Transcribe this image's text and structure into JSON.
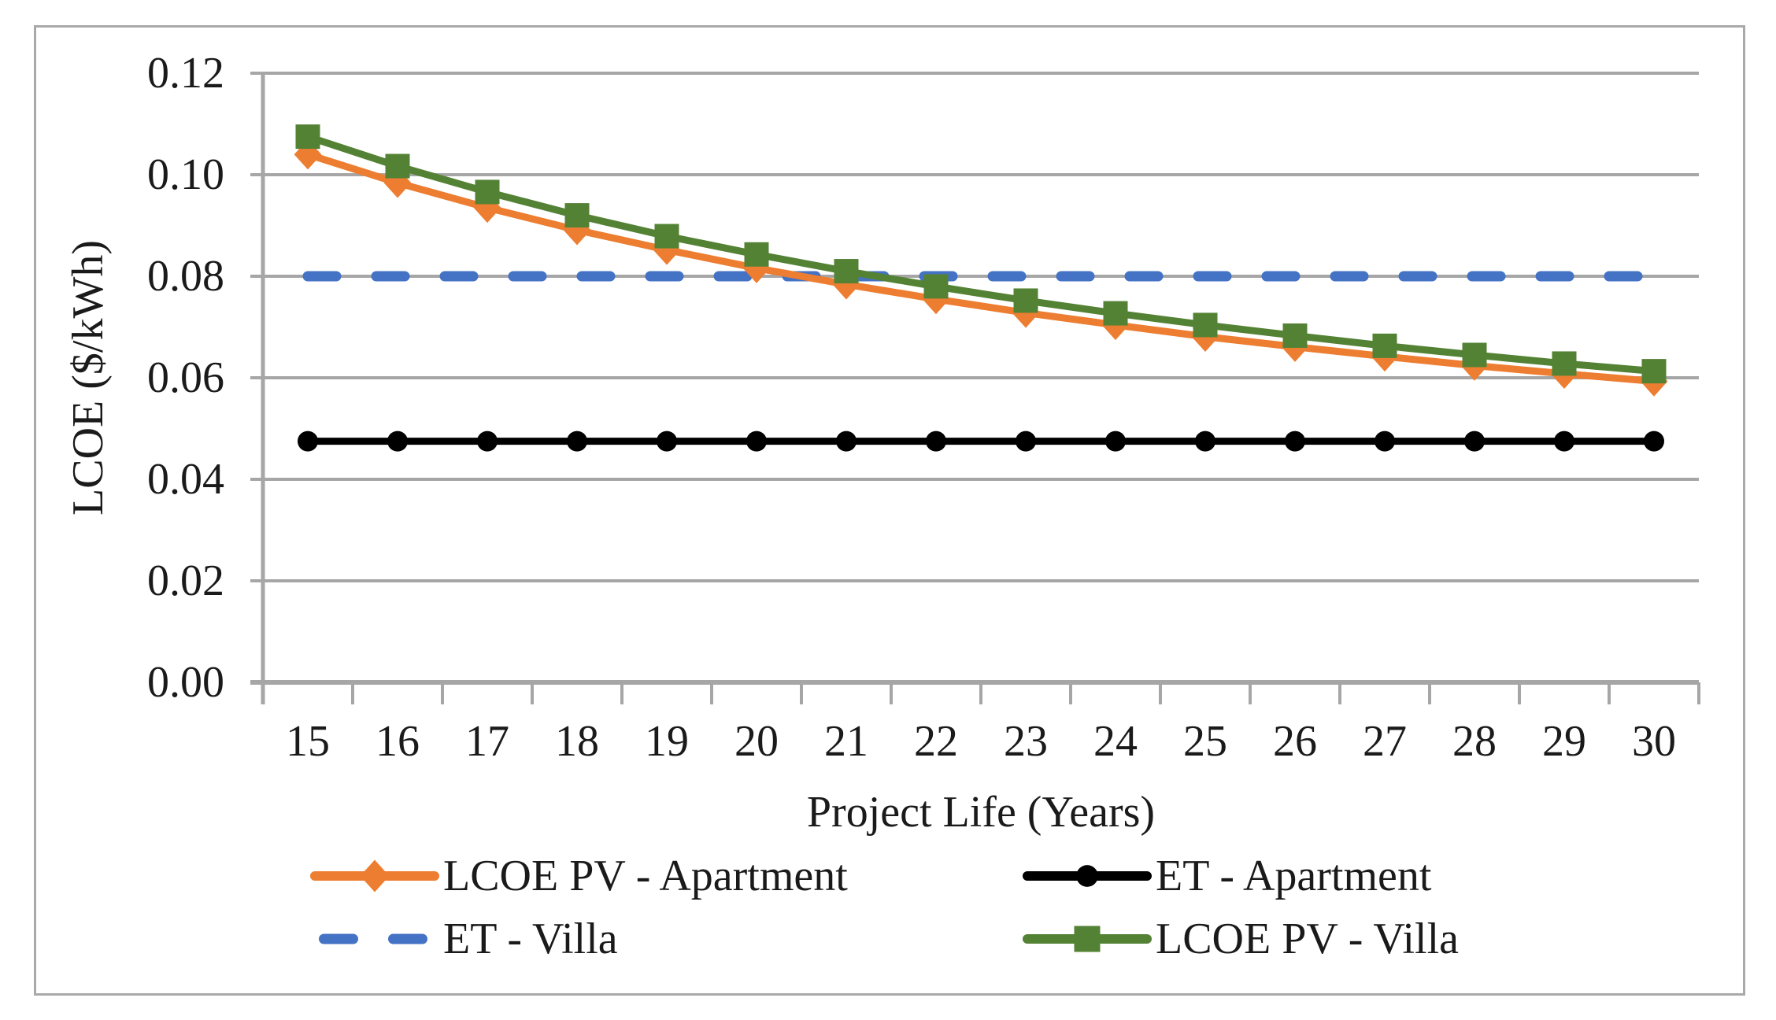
{
  "figure": {
    "background": "#ffffff",
    "border_color": "#a9a9a9",
    "gridline_color": "#a6a6a6",
    "axis_color": "#a6a6a6",
    "text_color": "#1a1a1a"
  },
  "chart_data": {
    "type": "line",
    "title": "",
    "xlabel": "Project Life (Years)",
    "ylabel": "LCOE ($/kWh)",
    "x_categories": [
      "15",
      "16",
      "17",
      "18",
      "19",
      "20",
      "21",
      "22",
      "23",
      "24",
      "25",
      "26",
      "27",
      "28",
      "29",
      "30"
    ],
    "ylim": [
      0,
      0.12
    ],
    "ytick_step": 0.02,
    "ytick_labels": [
      "0.00",
      "0.02",
      "0.04",
      "0.06",
      "0.08",
      "0.10",
      "0.12"
    ],
    "grid": "horizontal-only",
    "legend_position": "bottom, 2 columns x 2 rows",
    "series": [
      {
        "key": "et_villa",
        "name": "ET - Villa",
        "color": "#4472C4",
        "style": "dashed",
        "marker": "none",
        "values": [
          0.08,
          0.08,
          0.08,
          0.08,
          0.08,
          0.08,
          0.08,
          0.08,
          0.08,
          0.08,
          0.08,
          0.08,
          0.08,
          0.08,
          0.08,
          0.08
        ]
      },
      {
        "key": "et_apartment",
        "name": "ET - Apartment",
        "color": "#000000",
        "style": "solid",
        "marker": "circle",
        "values": [
          0.0475,
          0.0475,
          0.0475,
          0.0475,
          0.0475,
          0.0475,
          0.0475,
          0.0475,
          0.0475,
          0.0475,
          0.0475,
          0.0475,
          0.0475,
          0.0475,
          0.0475,
          0.0475
        ]
      },
      {
        "key": "lcoe_pv_apartment",
        "name": "LCOE PV - Apartment",
        "color": "#ED7D31",
        "style": "solid",
        "marker": "diamond",
        "values": [
          0.104,
          0.0984,
          0.0935,
          0.0891,
          0.0852,
          0.0816,
          0.0784,
          0.0755,
          0.0728,
          0.0704,
          0.0681,
          0.0661,
          0.0642,
          0.0624,
          0.0608,
          0.0593
        ]
      },
      {
        "key": "lcoe_pv_villa",
        "name": "LCOE PV - Villa",
        "color": "#548235",
        "style": "solid",
        "marker": "square",
        "values": [
          0.1075,
          0.1017,
          0.0966,
          0.092,
          0.0879,
          0.0843,
          0.081,
          0.078,
          0.0752,
          0.0727,
          0.0704,
          0.0683,
          0.0663,
          0.0645,
          0.0628,
          0.0613
        ]
      }
    ],
    "legend_order": [
      "lcoe_pv_apartment",
      "et_apartment",
      "et_villa",
      "lcoe_pv_villa"
    ]
  }
}
